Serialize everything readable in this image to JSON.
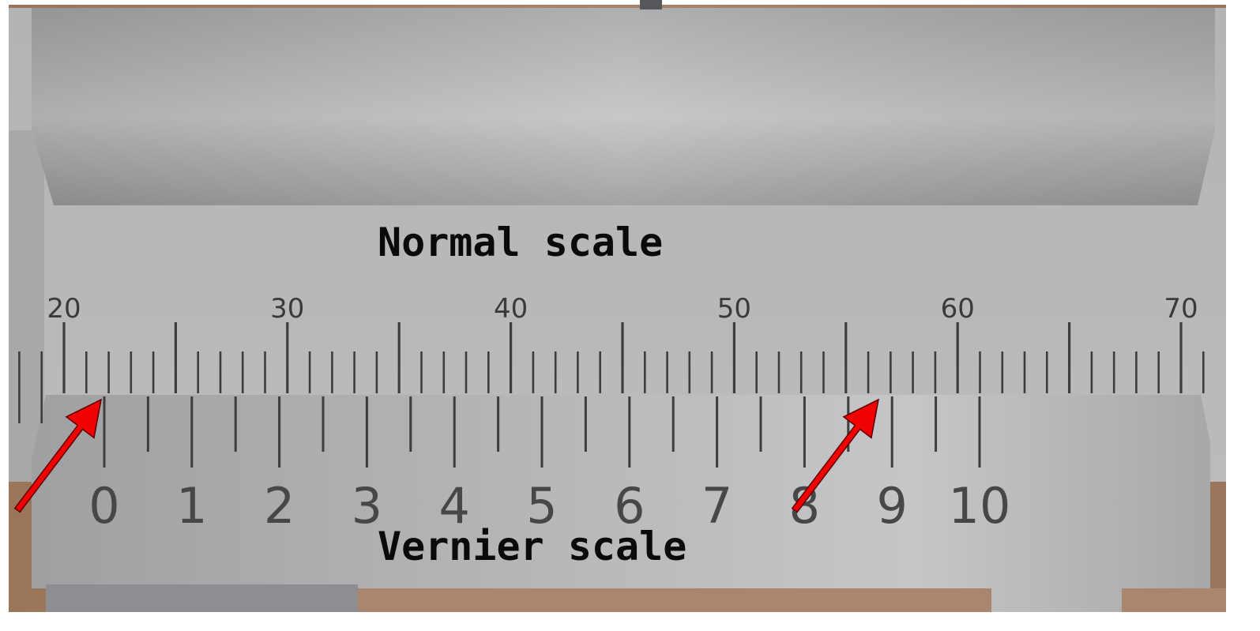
{
  "labels": {
    "normal_scale": "Normal scale",
    "vernier_scale": "Vernier scale"
  },
  "main_scale": {
    "numbers": [
      "20",
      "30",
      "40",
      "50",
      "60",
      "70"
    ],
    "first_value": 20,
    "last_value": 70,
    "ticks_per_label": 10
  },
  "vernier_scale": {
    "numbers": [
      "0",
      "1",
      "2",
      "3",
      "4",
      "5",
      "6",
      "7",
      "8",
      "9",
      "10"
    ]
  },
  "arrows": [
    {
      "name": "zero-alignment-arrow",
      "points_to": "vernier 0"
    },
    {
      "name": "coincidence-arrow",
      "points_to": "vernier 9"
    }
  ],
  "colors": {
    "wood": "#a27d63",
    "metal": "#b2b2b4",
    "tick": "#3d3d3d",
    "arrow": "#f00000"
  }
}
